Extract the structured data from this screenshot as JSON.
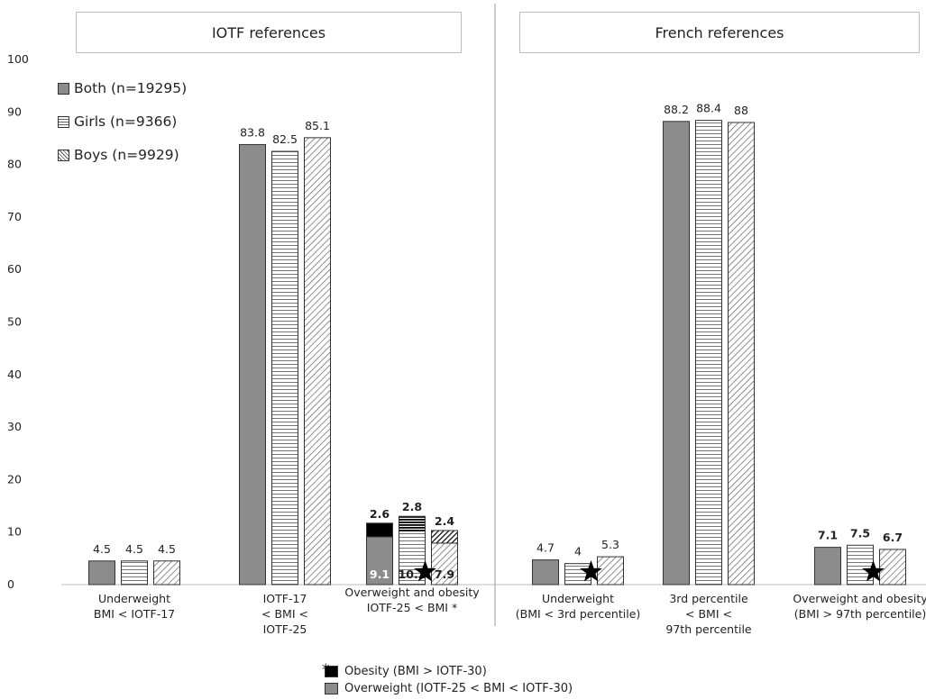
{
  "chart_data": {
    "type": "bar",
    "y_ticks": [
      "0",
      "10",
      "20",
      "30",
      "40",
      "50",
      "60",
      "70",
      "80",
      "90",
      "100"
    ],
    "ylim": [
      0,
      100
    ],
    "panels": [
      {
        "title": "IOTF references"
      },
      {
        "title": "French references"
      }
    ],
    "series": [
      {
        "name": "Both (n=19295)",
        "pattern": "solid"
      },
      {
        "name": "Girls (n=9366)",
        "pattern": "horizontal"
      },
      {
        "name": "Boys (n=9929)",
        "pattern": "diagonal"
      }
    ],
    "groups": [
      {
        "label": "Underweight\nBMI < IOTF-17",
        "values": [
          4.5,
          4.5,
          4.5
        ],
        "labels": [
          "4.5",
          "4.5",
          "4.5"
        ]
      },
      {
        "label": "IOTF-17\n< BMI <\nIOTF-25",
        "values": [
          83.8,
          82.5,
          85.1
        ],
        "labels": [
          "83.8",
          "82.5",
          "85.1"
        ]
      },
      {
        "label": "Overweight and obesity\nIOTF-25 < BMI *",
        "stacked": true,
        "overweight": [
          9.1,
          10.2,
          7.9
        ],
        "obesity": [
          2.6,
          2.8,
          2.4
        ],
        "overweight_labels": [
          "9.1",
          "10.2",
          "7.9"
        ],
        "obesity_labels": [
          "2.6",
          "2.8",
          "2.4"
        ]
      },
      {
        "label": "Underweight\n(BMI < 3rd percentile)",
        "values": [
          4.7,
          4,
          5.3
        ],
        "labels": [
          "4.7",
          "4",
          "5.3"
        ]
      },
      {
        "label": "3rd percentile\n< BMI <\n97th percentile",
        "values": [
          88.2,
          88.4,
          88
        ],
        "labels": [
          "88.2",
          "88.4",
          "88"
        ]
      },
      {
        "label": "Overweight and obesity\n(BMI > 97th percentile)",
        "values": [
          7.1,
          7.5,
          6.7
        ],
        "labels": [
          "7.1",
          "7.5",
          "6.7"
        ]
      }
    ],
    "stars": [
      2,
      3,
      5
    ],
    "footnote": {
      "marker": "*",
      "obesity": "Obesity (BMI > IOTF-30)",
      "overweight": "Overweight (IOTF-25 < BMI < IOTF-30)"
    },
    "colors": {
      "both": "#8c8c8c",
      "obesity": "#000000",
      "outline": "#333333"
    }
  }
}
